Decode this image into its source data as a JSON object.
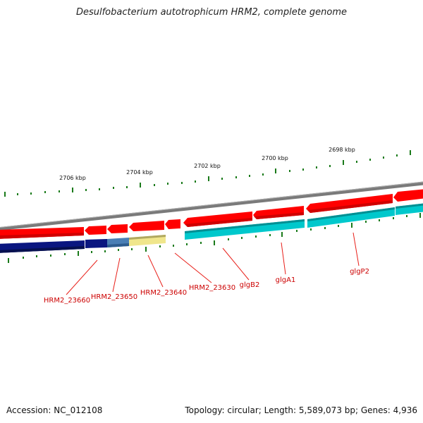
{
  "title": "Desulfobacterium autotrophicum HRM2, complete genome",
  "footer": {
    "accession": "Accession: NC_012108",
    "topology": "Topology: circular; Length: 5,589,073 bp; Genes: 4,936"
  },
  "colors": {
    "forward_cds": "#ff0000",
    "reverse_cds_cyan": "#00c8cc",
    "navy": "#0a1680",
    "steel_blue": "#4a7fb5",
    "khaki": "#f0e68c",
    "backbone": "#808080",
    "tick": "#1a7a1a",
    "label": "#cc0000"
  },
  "scale_labels": [
    "2706 kbp",
    "2704 kbp",
    "2702 kbp",
    "2700 kbp",
    "2698 kbp"
  ],
  "gene_labels": [
    "HRM2_23660",
    "HRM2_23650",
    "HRM2_23640",
    "HRM2_23630",
    "glgB2",
    "glgA1",
    "glgP2"
  ]
}
